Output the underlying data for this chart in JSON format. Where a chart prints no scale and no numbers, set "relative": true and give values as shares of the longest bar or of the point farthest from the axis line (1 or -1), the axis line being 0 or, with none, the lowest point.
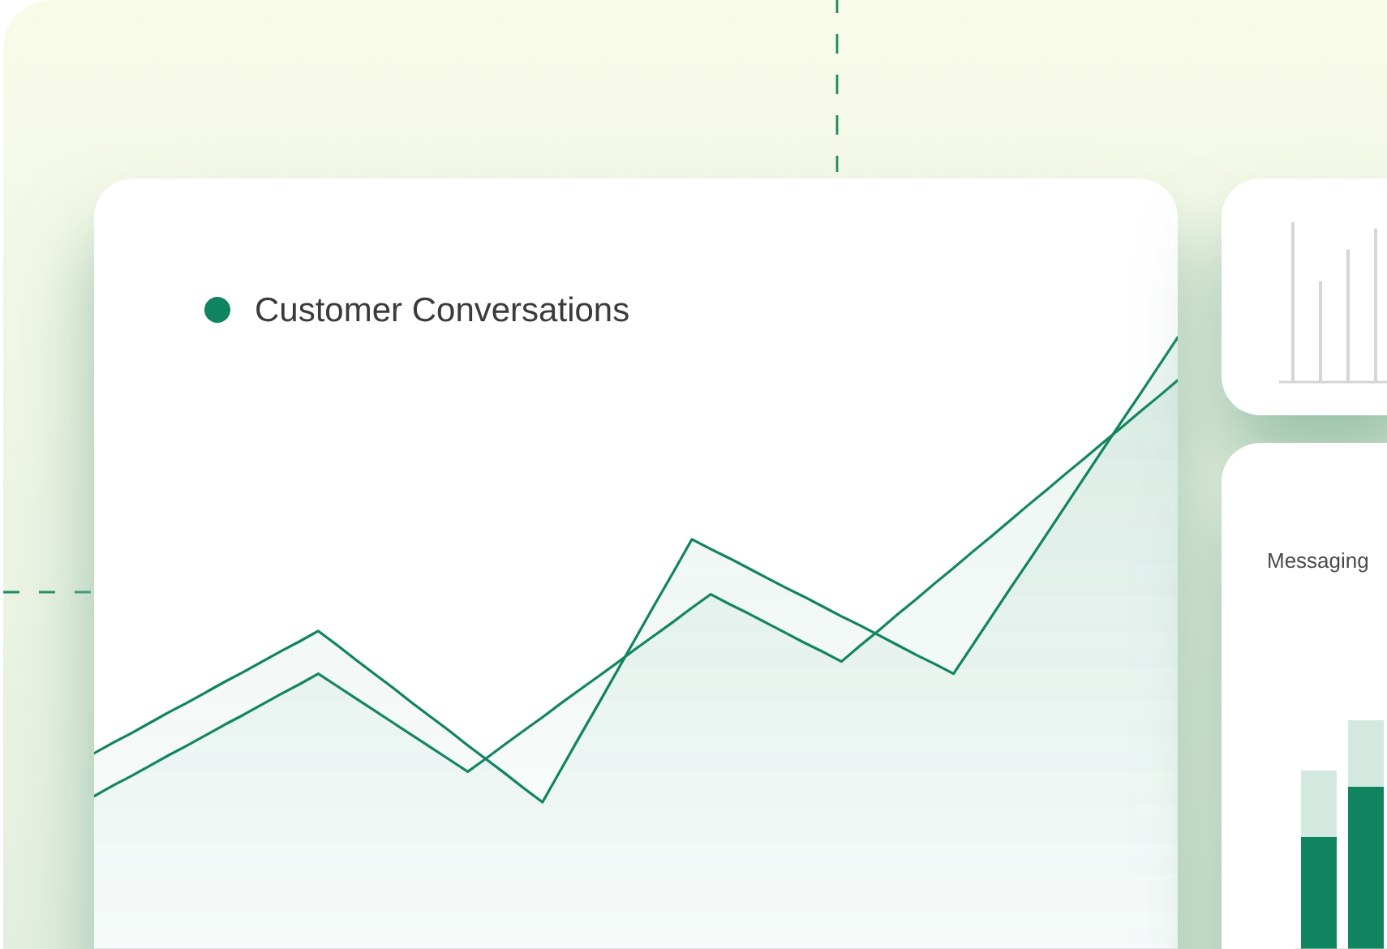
{
  "chart_data": [
    {
      "type": "area",
      "relative": true,
      "legend": "top left",
      "categories": [
        null,
        null,
        null,
        null,
        null,
        null,
        null,
        null,
        null,
        null,
        null,
        null,
        null,
        null,
        null,
        null,
        null,
        null,
        null,
        null,
        null,
        null,
        null,
        null,
        null,
        null,
        null,
        null,
        null,
        null,
        null,
        null,
        null,
        null,
        null,
        null,
        null,
        null,
        null,
        null,
        null,
        null,
        null,
        null,
        null,
        null,
        null,
        null,
        null,
        null,
        null,
        null,
        null,
        null,
        null,
        null,
        null,
        null,
        null
      ],
      "series": [
        {
          "name": "Customer Conversations",
          "color": "#10845e",
          "values": [
            0.32,
            0.337,
            0.353,
            0.37,
            0.387,
            0.403,
            0.42,
            0.437,
            0.453,
            0.47,
            0.487,
            0.503,
            0.52,
            0.497,
            0.473,
            0.45,
            0.427,
            0.403,
            0.38,
            0.357,
            0.333,
            0.31,
            0.287,
            0.263,
            0.24,
            0.294,
            0.348,
            0.401,
            0.455,
            0.509,
            0.563,
            0.616,
            0.67,
            0.654,
            0.639,
            0.623,
            0.607,
            0.591,
            0.576,
            0.56,
            0.544,
            0.529,
            0.513,
            0.497,
            0.481,
            0.466,
            0.45,
            0.496,
            0.542,
            0.588,
            0.633,
            0.679,
            0.725,
            0.771,
            0.817,
            0.863,
            0.908,
            0.954,
            1
          ]
        },
        {
          "color": "#138660",
          "values": [
            0.25,
            0.267,
            0.283,
            0.3,
            0.317,
            0.333,
            0.35,
            0.367,
            0.383,
            0.4,
            0.417,
            0.433,
            0.45,
            0.43,
            0.41,
            0.39,
            0.37,
            0.35,
            0.33,
            0.31,
            0.29,
            0.312,
            0.335,
            0.357,
            0.379,
            0.402,
            0.424,
            0.446,
            0.468,
            0.491,
            0.513,
            0.535,
            0.558,
            0.58,
            0.564,
            0.549,
            0.533,
            0.517,
            0.501,
            0.486,
            0.47,
            0.496,
            0.521,
            0.547,
            0.572,
            0.598,
            0.623,
            0.649,
            0.674,
            0.7,
            0.726,
            0.751,
            0.777,
            0.802,
            0.828,
            0.853,
            0.879,
            0.904,
            0.93
          ]
        }
      ]
    },
    {
      "type": "bar",
      "relative": true,
      "categories": [
        null,
        null,
        null,
        null
      ],
      "values": [
        1,
        0.63,
        0.83,
        0.96
      ],
      "color": "#d6d6d6"
    },
    {
      "type": "bar",
      "relative": true,
      "title": "Messaging",
      "stacked": true,
      "categories": [
        null,
        null
      ],
      "series": [
        {
          "color": "#10845e",
          "values": [
            0.49,
            0.71
          ]
        },
        {
          "color": "#d3e8df",
          "values": [
            0.29,
            0.29
          ]
        }
      ]
    }
  ]
}
